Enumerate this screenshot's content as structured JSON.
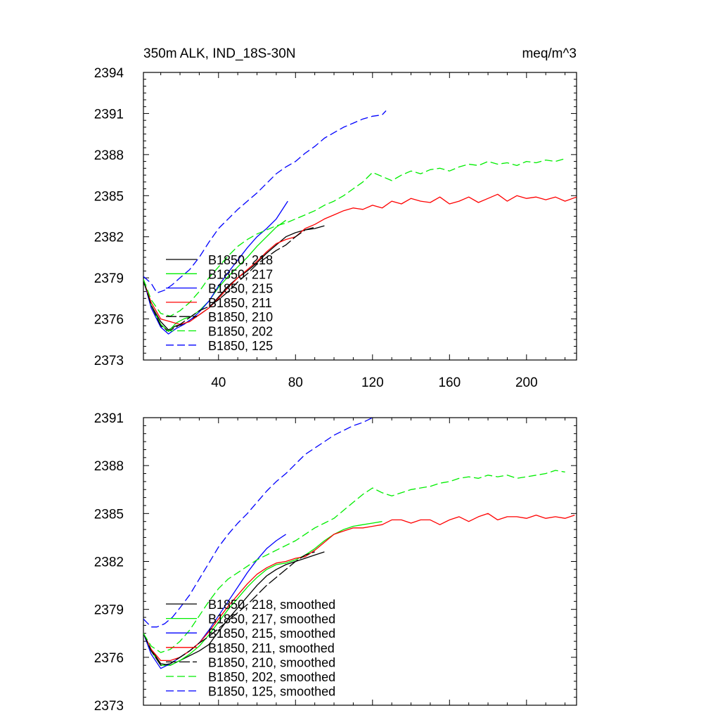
{
  "chart_data": [
    {
      "type": "line",
      "title_left": "350m ALK, IND_18S-30N",
      "title_right": "meq/m^3",
      "xlim": [
        1,
        226
      ],
      "ylim": [
        2373,
        2394
      ],
      "x_ticks": [
        40,
        80,
        120,
        160,
        200
      ],
      "y_ticks": [
        2373,
        2376,
        2379,
        2382,
        2385,
        2388,
        2391,
        2394
      ],
      "legend_position": "bottom-left",
      "series": [
        {
          "name": "B1850, 218",
          "color": "#000000",
          "dash": "solid",
          "x": [
            1,
            5,
            10,
            14,
            18,
            22,
            26,
            30,
            35,
            40,
            45,
            50,
            55,
            60,
            65,
            70,
            75,
            80,
            85,
            90,
            95
          ],
          "y": [
            2378.8,
            2377.0,
            2375.8,
            2375.2,
            2375.5,
            2375.6,
            2376.0,
            2376.3,
            2376.8,
            2377.6,
            2378.4,
            2379.0,
            2379.5,
            2380.1,
            2380.8,
            2381.4,
            2382.0,
            2382.3,
            2382.5,
            2382.6,
            2382.8
          ]
        },
        {
          "name": "B1850, 217",
          "color": "#00ee00",
          "dash": "solid",
          "x": [
            1,
            5,
            10,
            14,
            18,
            22,
            26,
            30,
            35,
            40,
            45,
            50,
            55,
            60,
            65,
            70,
            75
          ],
          "y": [
            2378.9,
            2377.0,
            2375.6,
            2375.1,
            2375.7,
            2376.0,
            2376.2,
            2376.6,
            2377.3,
            2378.3,
            2379.1,
            2379.8,
            2380.5,
            2381.3,
            2382.0,
            2382.7,
            2383.2
          ]
        },
        {
          "name": "B1850, 215",
          "color": "#0000ff",
          "dash": "solid",
          "x": [
            1,
            5,
            10,
            14,
            18,
            22,
            26,
            30,
            35,
            40,
            45,
            50,
            55,
            60,
            65,
            70,
            76
          ],
          "y": [
            2378.9,
            2376.8,
            2375.4,
            2374.9,
            2375.3,
            2375.6,
            2376.0,
            2376.5,
            2377.3,
            2378.4,
            2379.4,
            2380.3,
            2381.2,
            2382.0,
            2382.6,
            2383.3,
            2384.6
          ]
        },
        {
          "name": "B1850, 211",
          "color": "#ff0000",
          "dash": "solid",
          "x": [
            1,
            5,
            10,
            15,
            20,
            25,
            30,
            35,
            40,
            45,
            50,
            55,
            60,
            65,
            70,
            75,
            80,
            85,
            90,
            95,
            100,
            105,
            110,
            115,
            120,
            125,
            130,
            135,
            140,
            145,
            150,
            155,
            160,
            165,
            170,
            175,
            180,
            185,
            190,
            195,
            200,
            205,
            210,
            215,
            220,
            226
          ],
          "y": [
            2378.8,
            2377.2,
            2376.0,
            2375.8,
            2375.6,
            2375.8,
            2376.3,
            2376.8,
            2377.5,
            2378.3,
            2379.0,
            2379.6,
            2380.2,
            2380.9,
            2381.5,
            2381.8,
            2382.0,
            2382.6,
            2382.9,
            2383.3,
            2383.6,
            2383.9,
            2384.1,
            2384.0,
            2384.3,
            2384.1,
            2384.6,
            2384.4,
            2384.8,
            2384.6,
            2384.5,
            2384.9,
            2384.4,
            2384.6,
            2384.9,
            2384.5,
            2384.8,
            2385.1,
            2384.6,
            2385.0,
            2384.8,
            2384.9,
            2384.7,
            2384.9,
            2384.6,
            2384.9
          ]
        },
        {
          "name": "B1850, 210",
          "color": "#000000",
          "dash": "longdash",
          "x": [
            1,
            5,
            10,
            14,
            18,
            22,
            26,
            30,
            35,
            40,
            45,
            50,
            55,
            60,
            65,
            70,
            75,
            80,
            85,
            90
          ],
          "y": [
            2378.8,
            2377.0,
            2375.5,
            2375.1,
            2375.4,
            2375.8,
            2376.2,
            2376.6,
            2376.9,
            2377.4,
            2378.0,
            2378.7,
            2379.3,
            2380.0,
            2380.5,
            2381.0,
            2381.4,
            2382.0,
            2382.5,
            2382.7
          ]
        },
        {
          "name": "B1850, 202",
          "color": "#00ee00",
          "dash": "dash",
          "x": [
            1,
            5,
            10,
            15,
            20,
            25,
            30,
            35,
            40,
            45,
            50,
            55,
            60,
            65,
            70,
            75,
            80,
            85,
            90,
            95,
            100,
            105,
            110,
            115,
            120,
            125,
            130,
            135,
            140,
            145,
            150,
            155,
            160,
            165,
            170,
            175,
            180,
            185,
            190,
            195,
            200,
            205,
            210,
            215,
            220
          ],
          "y": [
            2378.9,
            2377.4,
            2376.4,
            2376.2,
            2376.6,
            2377.2,
            2378.0,
            2379.0,
            2379.8,
            2380.6,
            2381.3,
            2381.8,
            2382.2,
            2382.5,
            2382.8,
            2383.0,
            2383.3,
            2383.6,
            2383.9,
            2384.3,
            2384.6,
            2385.0,
            2385.5,
            2386.0,
            2386.7,
            2386.4,
            2386.1,
            2386.5,
            2386.8,
            2386.6,
            2386.9,
            2387.0,
            2386.8,
            2387.1,
            2387.3,
            2387.2,
            2387.5,
            2387.3,
            2387.4,
            2387.2,
            2387.5,
            2387.4,
            2387.6,
            2387.5,
            2387.7
          ]
        },
        {
          "name": "B1850, 125",
          "color": "#0000ff",
          "dash": "dash",
          "x": [
            1,
            5,
            8,
            12,
            16,
            20,
            25,
            30,
            35,
            40,
            45,
            50,
            55,
            60,
            65,
            70,
            75,
            80,
            85,
            90,
            95,
            100,
            105,
            110,
            115,
            120,
            125,
            127
          ],
          "y": [
            2379.1,
            2378.6,
            2377.9,
            2378.1,
            2378.5,
            2379.0,
            2379.6,
            2380.5,
            2381.6,
            2382.6,
            2383.3,
            2384.0,
            2384.6,
            2385.2,
            2385.9,
            2386.6,
            2387.1,
            2387.5,
            2388.1,
            2388.6,
            2389.2,
            2389.6,
            2390.0,
            2390.3,
            2390.6,
            2390.8,
            2390.9,
            2391.2
          ]
        }
      ]
    },
    {
      "type": "line",
      "xlim": [
        1,
        226
      ],
      "ylim": [
        2373,
        2391
      ],
      "y_ticks": [
        2373,
        2376,
        2379,
        2382,
        2385,
        2388,
        2391
      ],
      "legend_position": "bottom-left",
      "series": [
        {
          "name": "B1850, 218, smoothed",
          "color": "#000000",
          "dash": "solid",
          "x": [
            1,
            5,
            10,
            15,
            20,
            25,
            30,
            35,
            40,
            45,
            50,
            55,
            60,
            65,
            70,
            75,
            80,
            85,
            90,
            95
          ],
          "y": [
            2377.5,
            2376.5,
            2375.6,
            2375.5,
            2375.8,
            2376.1,
            2376.4,
            2376.8,
            2377.6,
            2378.4,
            2379.1,
            2379.8,
            2380.5,
            2381.1,
            2381.5,
            2381.8,
            2382.0,
            2382.2,
            2382.4,
            2382.6
          ]
        },
        {
          "name": "B1850, 217, smoothed",
          "color": "#00ee00",
          "dash": "solid",
          "x": [
            1,
            5,
            10,
            15,
            20,
            25,
            30,
            35,
            40,
            45,
            50,
            55,
            60,
            65,
            70,
            75,
            80,
            85,
            90,
            95,
            100,
            105,
            110,
            115,
            120,
            125
          ],
          "y": [
            2377.5,
            2376.4,
            2375.5,
            2375.5,
            2375.8,
            2376.2,
            2376.7,
            2377.4,
            2378.2,
            2379.0,
            2379.7,
            2380.4,
            2381.0,
            2381.5,
            2381.8,
            2381.9,
            2382.1,
            2382.4,
            2382.8,
            2383.3,
            2383.7,
            2384.0,
            2384.2,
            2384.3,
            2384.4,
            2384.5
          ]
        },
        {
          "name": "B1850, 215, smoothed",
          "color": "#0000ff",
          "dash": "solid",
          "x": [
            1,
            5,
            10,
            15,
            20,
            25,
            30,
            35,
            40,
            45,
            50,
            55,
            60,
            65,
            70,
            75
          ],
          "y": [
            2377.5,
            2376.2,
            2375.3,
            2375.6,
            2376.0,
            2376.4,
            2376.9,
            2377.7,
            2378.6,
            2379.5,
            2380.4,
            2381.3,
            2382.1,
            2382.8,
            2383.3,
            2383.7
          ]
        },
        {
          "name": "B1850, 211, smoothed",
          "color": "#ff0000",
          "dash": "solid",
          "x": [
            1,
            5,
            10,
            15,
            20,
            25,
            30,
            35,
            40,
            45,
            50,
            55,
            60,
            65,
            70,
            75,
            80,
            85,
            90,
            95,
            100,
            105,
            110,
            115,
            120,
            125,
            130,
            135,
            140,
            145,
            150,
            155,
            160,
            165,
            170,
            175,
            180,
            185,
            190,
            195,
            200,
            205,
            210,
            215,
            220,
            225
          ],
          "y": [
            2377.5,
            2376.5,
            2375.8,
            2375.8,
            2376.0,
            2376.4,
            2376.9,
            2377.6,
            2378.4,
            2379.2,
            2379.9,
            2380.6,
            2381.2,
            2381.6,
            2381.9,
            2382.0,
            2382.2,
            2382.3,
            2382.7,
            2383.2,
            2383.7,
            2383.9,
            2384.1,
            2384.1,
            2384.2,
            2384.3,
            2384.6,
            2384.6,
            2384.4,
            2384.6,
            2384.6,
            2384.3,
            2384.6,
            2384.8,
            2384.5,
            2384.8,
            2385.0,
            2384.6,
            2384.8,
            2384.8,
            2384.7,
            2384.9,
            2384.7,
            2384.8,
            2384.7,
            2384.9
          ]
        },
        {
          "name": "B1850, 210, smoothed",
          "color": "#000000",
          "dash": "longdash",
          "x": [
            1,
            5,
            10,
            15,
            20,
            25,
            30,
            35,
            40,
            45,
            50,
            55,
            60,
            65,
            70,
            75,
            80,
            85,
            90
          ],
          "y": [
            2377.5,
            2376.4,
            2375.5,
            2375.6,
            2376.0,
            2376.4,
            2376.9,
            2377.3,
            2377.8,
            2378.3,
            2378.8,
            2379.3,
            2379.9,
            2380.5,
            2381.0,
            2381.5,
            2382.0,
            2382.4,
            2382.6
          ]
        },
        {
          "name": "B1850, 202, smoothed",
          "color": "#00ee00",
          "dash": "dash",
          "x": [
            1,
            5,
            10,
            15,
            20,
            25,
            30,
            35,
            40,
            45,
            50,
            55,
            60,
            65,
            70,
            75,
            80,
            85,
            90,
            95,
            100,
            105,
            110,
            115,
            120,
            125,
            130,
            135,
            140,
            145,
            150,
            155,
            160,
            165,
            170,
            175,
            180,
            185,
            190,
            195,
            200,
            205,
            210,
            215,
            220
          ],
          "y": [
            2377.5,
            2376.7,
            2376.3,
            2376.5,
            2377.0,
            2377.7,
            2378.6,
            2379.5,
            2380.3,
            2380.9,
            2381.3,
            2381.7,
            2382.1,
            2382.4,
            2382.7,
            2383.0,
            2383.3,
            2383.7,
            2384.1,
            2384.4,
            2384.7,
            2385.2,
            2385.7,
            2386.2,
            2386.6,
            2386.3,
            2386.1,
            2386.3,
            2386.5,
            2386.6,
            2386.7,
            2386.9,
            2387.0,
            2387.2,
            2387.3,
            2387.2,
            2387.4,
            2387.3,
            2387.4,
            2387.2,
            2387.3,
            2387.4,
            2387.5,
            2387.7,
            2387.6
          ]
        },
        {
          "name": "B1850, 125, smoothed",
          "color": "#0000ff",
          "dash": "dash",
          "x": [
            1,
            5,
            8,
            12,
            16,
            20,
            25,
            30,
            35,
            40,
            45,
            50,
            55,
            60,
            65,
            70,
            75,
            80,
            85,
            90,
            95,
            100,
            105,
            110,
            115,
            120,
            125
          ],
          "y": [
            2378.4,
            2377.9,
            2377.9,
            2378.1,
            2378.5,
            2379.1,
            2379.9,
            2380.9,
            2381.9,
            2382.9,
            2383.7,
            2384.4,
            2385.0,
            2385.7,
            2386.4,
            2387.0,
            2387.5,
            2388.1,
            2388.7,
            2389.1,
            2389.5,
            2389.9,
            2390.2,
            2390.5,
            2390.7,
            2391.0,
            2391.2
          ]
        }
      ]
    }
  ]
}
